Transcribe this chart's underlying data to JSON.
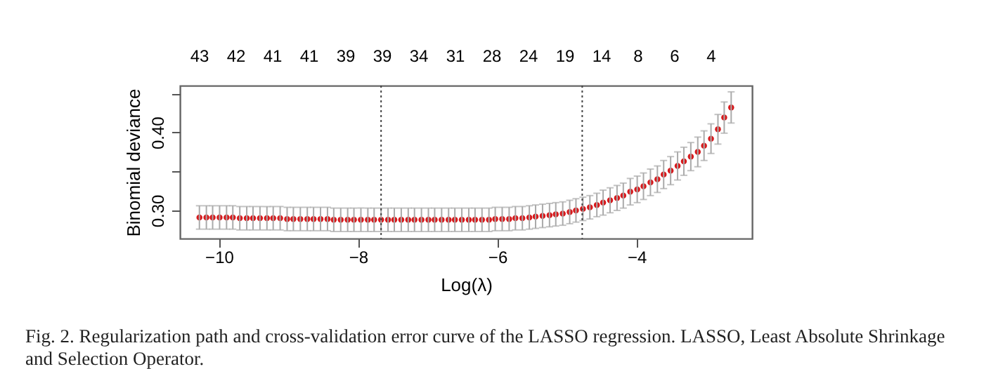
{
  "chart_data": {
    "type": "scatter",
    "xlabel": "Log(λ)",
    "ylabel": "Binomial deviance",
    "x": [
      -10.28,
      -10.18,
      -10.09,
      -9.99,
      -9.89,
      -9.8,
      -9.7,
      -9.6,
      -9.51,
      -9.41,
      -9.31,
      -9.22,
      -9.12,
      -9.02,
      -8.93,
      -8.83,
      -8.73,
      -8.64,
      -8.54,
      -8.44,
      -8.35,
      -8.25,
      -8.15,
      -8.06,
      -7.96,
      -7.86,
      -7.77,
      -7.67,
      -7.57,
      -7.48,
      -7.38,
      -7.28,
      -7.19,
      -7.09,
      -6.99,
      -6.9,
      -6.8,
      -6.7,
      -6.61,
      -6.51,
      -6.41,
      -6.32,
      -6.22,
      -6.12,
      -6.03,
      -5.93,
      -5.83,
      -5.74,
      -5.64,
      -5.54,
      -5.45,
      -5.35,
      -5.25,
      -5.16,
      -5.06,
      -4.96,
      -4.87,
      -4.77,
      -4.67,
      -4.57,
      -4.48,
      -4.38,
      -4.28,
      -4.19,
      -4.09,
      -3.99,
      -3.9,
      -3.8,
      -3.7,
      -3.61,
      -3.51,
      -3.41,
      -3.32,
      -3.22,
      -3.12,
      -3.03,
      -2.93,
      -2.83,
      -2.74,
      -2.64
    ],
    "series": [
      {
        "color": "#d7191c",
        "values": [
          0.291,
          0.291,
          0.291,
          0.291,
          0.291,
          0.291,
          0.29,
          0.29,
          0.29,
          0.29,
          0.29,
          0.29,
          0.29,
          0.289,
          0.289,
          0.289,
          0.289,
          0.289,
          0.289,
          0.289,
          0.288,
          0.288,
          0.288,
          0.288,
          0.288,
          0.288,
          0.288,
          0.288,
          0.288,
          0.288,
          0.288,
          0.288,
          0.288,
          0.288,
          0.288,
          0.288,
          0.288,
          0.288,
          0.288,
          0.288,
          0.288,
          0.288,
          0.288,
          0.288,
          0.289,
          0.289,
          0.289,
          0.29,
          0.29,
          0.291,
          0.292,
          0.293,
          0.294,
          0.295,
          0.296,
          0.298,
          0.3,
          0.302,
          0.304,
          0.307,
          0.31,
          0.313,
          0.316,
          0.319,
          0.324,
          0.327,
          0.331,
          0.336,
          0.34,
          0.346,
          0.351,
          0.357,
          0.363,
          0.369,
          0.375,
          0.383,
          0.392,
          0.404,
          0.419,
          0.432
        ],
        "errors": [
          0.015,
          0.015,
          0.015,
          0.015,
          0.015,
          0.015,
          0.015,
          0.015,
          0.015,
          0.015,
          0.015,
          0.015,
          0.015,
          0.015,
          0.015,
          0.015,
          0.015,
          0.015,
          0.015,
          0.015,
          0.015,
          0.015,
          0.015,
          0.015,
          0.015,
          0.015,
          0.015,
          0.015,
          0.015,
          0.015,
          0.015,
          0.015,
          0.015,
          0.015,
          0.015,
          0.015,
          0.015,
          0.015,
          0.015,
          0.015,
          0.015,
          0.015,
          0.015,
          0.015,
          0.015,
          0.015,
          0.015,
          0.015,
          0.015,
          0.015,
          0.015,
          0.015,
          0.015,
          0.015,
          0.015,
          0.015,
          0.015,
          0.015,
          0.015,
          0.015,
          0.016,
          0.016,
          0.016,
          0.016,
          0.017,
          0.017,
          0.017,
          0.017,
          0.017,
          0.018,
          0.018,
          0.018,
          0.018,
          0.018,
          0.019,
          0.019,
          0.019,
          0.019,
          0.02,
          0.02
        ]
      }
    ],
    "marker": "circle",
    "xlim": [
      -10.56,
      -2.34
    ],
    "xticks": [
      -10,
      -8,
      -6,
      -4
    ],
    "ylim": [
      0.264,
      0.46
    ],
    "yticks": [
      {
        "value": 0.3,
        "label": "0.30"
      },
      {
        "value": 0.35,
        "label": null
      },
      {
        "value": 0.4,
        "label": "0.40"
      },
      {
        "value": 0.45,
        "label": null
      }
    ],
    "ref_lines": [
      {
        "axis": "x",
        "value": -7.67,
        "line_style": "dotted",
        "color": "#444444"
      },
      {
        "axis": "x",
        "value": -4.78,
        "line_style": "dotted",
        "color": "#444444"
      }
    ],
    "grid": false,
    "annotations": [
      "43",
      "42",
      "41",
      "41",
      "39",
      "39",
      "34",
      "31",
      "28",
      "24",
      "19",
      "14",
      "8",
      "6",
      "4",
      "Fig. 2.  Regularization path and cross-validation error curve of the LASSO regression. LASSO, Least Absolute Shrinkage and Selection Operator."
    ]
  }
}
